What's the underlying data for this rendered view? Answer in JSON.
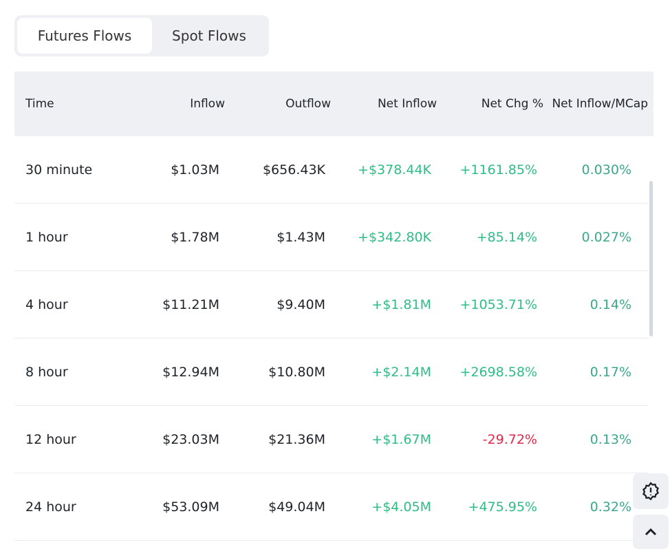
{
  "tabs": [
    "Futures Flows",
    "Spot Flows"
  ],
  "columns": [
    "Time",
    "Inflow",
    "Outflow",
    "Net Inflow",
    "Net Chg %",
    "Net Inflow/MCap"
  ],
  "rows": [
    [
      "30 minute",
      "$1.03M",
      "$656.43K",
      "+$378.44K",
      "+1161.85%",
      "0.030%"
    ],
    [
      "1 hour",
      "$1.78M",
      "$1.43M",
      "+$342.80K",
      "+85.14%",
      "0.027%"
    ],
    [
      "4 hour",
      "$11.21M",
      "$9.40M",
      "+$1.81M",
      "+1053.71%",
      "0.14%"
    ],
    [
      "8 hour",
      "$12.94M",
      "$10.80M",
      "+$2.14M",
      "+2698.58%",
      "0.17%"
    ],
    [
      "12 hour",
      "$23.03M",
      "$21.36M",
      "+$1.67M",
      "-29.72%",
      "0.13%"
    ],
    [
      "24 hour",
      "$53.09M",
      "$49.04M",
      "+$4.05M",
      "+475.95%",
      "0.32%"
    ]
  ],
  "colors": {
    "positive": "#2ebd85",
    "negative": "#e0294a"
  }
}
